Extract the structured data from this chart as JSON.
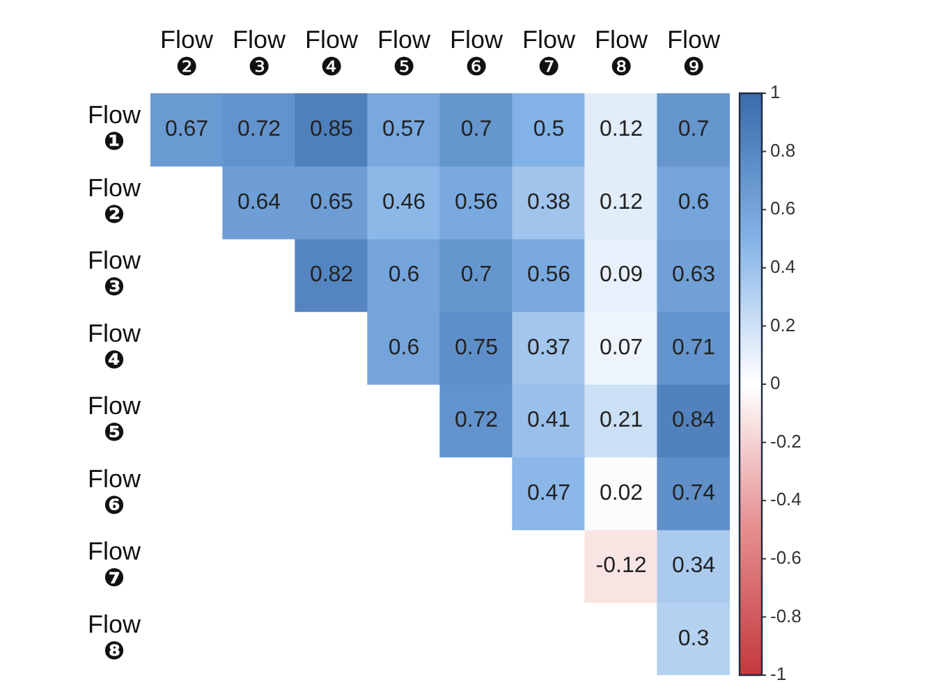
{
  "chart_data": {
    "type": "heatmap",
    "categories": [
      "Flow ❷",
      "Flow ❸",
      "Flow ❹",
      "Flow ❺",
      "Flow ❻",
      "Flow ❼",
      "Flow ❽",
      "Flow ❾"
    ],
    "y_categories": [
      "Flow ❶",
      "Flow ❷",
      "Flow ❸",
      "Flow ❹",
      "Flow ❺",
      "Flow ❻",
      "Flow ❼",
      "Flow ❽"
    ],
    "cells": [
      [
        0.67,
        0.72,
        0.85,
        0.57,
        0.7,
        0.5,
        0.12,
        0.7
      ],
      [
        null,
        0.64,
        0.65,
        0.46,
        0.56,
        0.38,
        0.12,
        0.6
      ],
      [
        null,
        null,
        0.82,
        0.6,
        0.7,
        0.56,
        0.09,
        0.63
      ],
      [
        null,
        null,
        null,
        0.6,
        0.75,
        0.37,
        0.07,
        0.71
      ],
      [
        null,
        null,
        null,
        null,
        0.72,
        0.41,
        0.21,
        0.84
      ],
      [
        null,
        null,
        null,
        null,
        null,
        0.47,
        0.02,
        0.74
      ],
      [
        null,
        null,
        null,
        null,
        null,
        null,
        -0.12,
        0.34
      ],
      [
        null,
        null,
        null,
        null,
        null,
        null,
        null,
        0.3
      ]
    ],
    "clim": [
      -1,
      1
    ],
    "cticks": [
      -1,
      -0.8,
      -0.6,
      -0.4,
      -0.2,
      0,
      0.2,
      0.4,
      0.6,
      0.8,
      1
    ],
    "data_labels": true
  }
}
